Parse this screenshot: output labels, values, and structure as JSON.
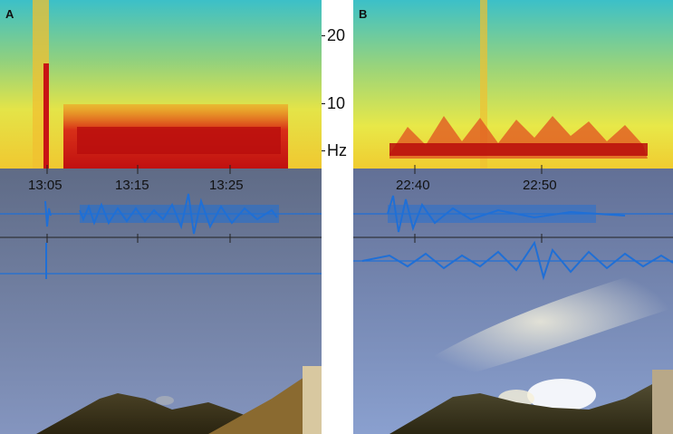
{
  "panels": [
    {
      "letter": "A",
      "times": [
        "13:05",
        "13:15",
        "13:25"
      ]
    },
    {
      "letter": "B",
      "times": [
        "22:40",
        "22:50"
      ]
    }
  ],
  "frequency_axis": {
    "ticks": [
      "20",
      "10",
      "Hz"
    ]
  },
  "colors": {
    "spectrogram_low": "#2fb8c8",
    "spectrogram_mid": "#e8e84a",
    "spectrogram_high": "#c81414",
    "seismogram": "#1f6fd6",
    "sky_top": "#6a7690",
    "sky_bottom": "#8a98bc",
    "plume": "#e8e6d0",
    "mountain": "#3a3520"
  }
}
